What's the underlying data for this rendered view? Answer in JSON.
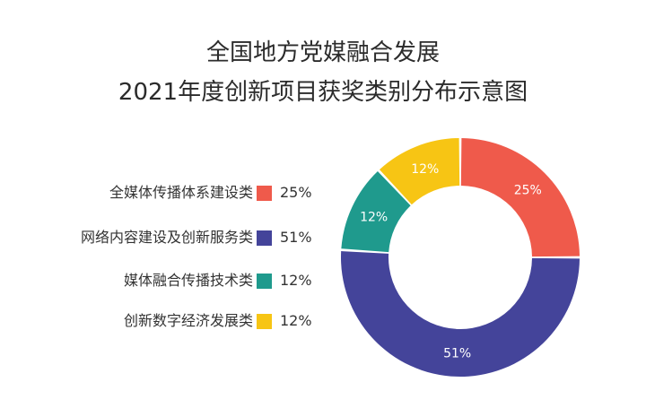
{
  "title_line1": "全国地方党媒融合发展",
  "title_line2": "2021年度创新项目获奖类别分布示意图",
  "chart_data": {
    "type": "pie",
    "donut": true,
    "title": "全国地方党媒融合发展 2021年度创新项目获奖类别分布示意图",
    "legend_position": "left",
    "slices": [
      {
        "name": "全媒体传播体系建设类",
        "value": 25,
        "label": "25%",
        "color": "#ef5a4b"
      },
      {
        "name": "网络内容建设及创新服务类",
        "value": 51,
        "label": "51%",
        "color": "#44449a"
      },
      {
        "name": "媒体融合传播技术类",
        "value": 12,
        "label": "12%",
        "color": "#1f9a8d"
      },
      {
        "name": "创新数字经济发展类",
        "value": 12,
        "label": "12%",
        "color": "#f7c514"
      }
    ]
  }
}
